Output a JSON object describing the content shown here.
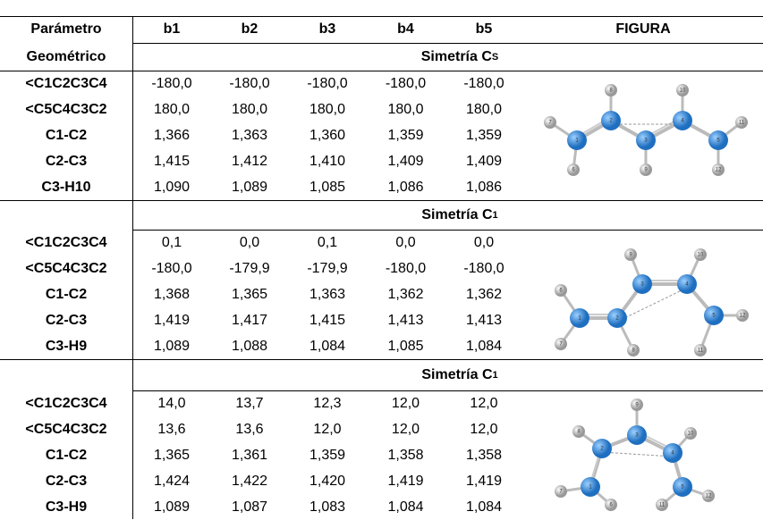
{
  "header": {
    "param_line1": "Parámetro",
    "param_line2": "Geométrico",
    "columns": [
      "b1",
      "b2",
      "b3",
      "b4",
      "b5"
    ],
    "figure": "FIGURA"
  },
  "sections": [
    {
      "title": "Simetría C",
      "subscript": "S",
      "rows": [
        {
          "param": "<C1C2C3C4",
          "values": [
            "-180,0",
            "-180,0",
            "-180,0",
            "-180,0",
            "-180,0"
          ]
        },
        {
          "param": "<C5C4C3C2",
          "values": [
            "180,0",
            "180,0",
            "180,0",
            "180,0",
            "180,0"
          ]
        },
        {
          "param": "C1-C2",
          "values": [
            "1,366",
            "1,363",
            "1,360",
            "1,359",
            "1,359"
          ]
        },
        {
          "param": "C2-C3",
          "values": [
            "1,415",
            "1,412",
            "1,410",
            "1,409",
            "1,409"
          ]
        },
        {
          "param": "C3-H10",
          "values": [
            "1,090",
            "1,089",
            "1,085",
            "1,086",
            "1,086"
          ]
        }
      ],
      "atom_labels": [
        "1",
        "2",
        "3",
        "4",
        "5",
        "6",
        "7",
        "8",
        "9",
        "10",
        "11",
        "12"
      ]
    },
    {
      "title": "Simetría C",
      "subscript": "1",
      "rows": [
        {
          "param": "<C1C2C3C4",
          "values": [
            "0,1",
            "0,0",
            "0,1",
            "0,0",
            "0,0"
          ]
        },
        {
          "param": "<C5C4C3C2",
          "values": [
            "-180,0",
            "-179,9",
            "-179,9",
            "-180,0",
            "-180,0"
          ]
        },
        {
          "param": "C1-C2",
          "values": [
            "1,368",
            "1,365",
            "1,363",
            "1,362",
            "1,362"
          ]
        },
        {
          "param": "C2-C3",
          "values": [
            "1,419",
            "1,417",
            "1,415",
            "1,413",
            "1,413"
          ]
        },
        {
          "param": "C3-H9",
          "values": [
            "1,089",
            "1,088",
            "1,084",
            "1,085",
            "1,084"
          ]
        }
      ],
      "atom_labels": [
        "1",
        "2",
        "3",
        "4",
        "5",
        "6",
        "7",
        "8",
        "9",
        "10",
        "11",
        "12"
      ]
    },
    {
      "title": "Simetría C",
      "subscript": "1",
      "rows": [
        {
          "param": "<C1C2C3C4",
          "values": [
            "14,0",
            "13,7",
            "12,3",
            "12,0",
            "12,0"
          ]
        },
        {
          "param": "<C5C4C3C2",
          "values": [
            "13,6",
            "13,6",
            "12,0",
            "12,0",
            "12,0"
          ]
        },
        {
          "param": "C1-C2",
          "values": [
            "1,365",
            "1,361",
            "1,359",
            "1,358",
            "1,358"
          ]
        },
        {
          "param": "C2-C3",
          "values": [
            "1,424",
            "1,422",
            "1,420",
            "1,419",
            "1,419"
          ]
        },
        {
          "param": "C3-H9",
          "values": [
            "1,089",
            "1,087",
            "1,083",
            "1,084",
            "1,084"
          ]
        }
      ],
      "atom_labels": [
        "1",
        "2",
        "3",
        "4",
        "5",
        "6",
        "7",
        "8",
        "9",
        "10",
        "11",
        "12"
      ]
    }
  ]
}
